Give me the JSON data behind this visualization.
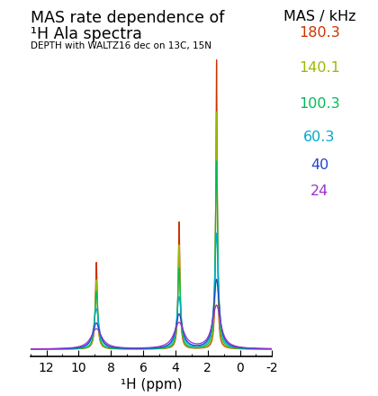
{
  "title_line1": "MAS rate dependence of",
  "title_line2": "¹H Ala spectra",
  "subtitle": "DEPTH with WALTZ16 dec on 13C, 15N",
  "legend_title": "MAS / kHz",
  "xlabel": "¹H (ppm)",
  "xlim": [
    13,
    -2
  ],
  "series": [
    {
      "label": "180.3",
      "color": "#CC3300"
    },
    {
      "label": "140.1",
      "color": "#99BB00"
    },
    {
      "label": "100.3",
      "color": "#00BB55"
    },
    {
      "label": "60.3",
      "color": "#00AACC"
    },
    {
      "label": "40",
      "color": "#2244CC"
    },
    {
      "label": "24",
      "color": "#9933CC"
    }
  ],
  "peaks": [
    {
      "ppm": 8.9,
      "heights": [
        0.3,
        0.24,
        0.2,
        0.14,
        0.09,
        0.07
      ],
      "widths": [
        0.15,
        0.18,
        0.23,
        0.38,
        0.55,
        0.8
      ]
    },
    {
      "ppm": 3.77,
      "heights": [
        0.44,
        0.36,
        0.28,
        0.18,
        0.12,
        0.09
      ],
      "widths": [
        0.13,
        0.16,
        0.21,
        0.34,
        0.5,
        0.75
      ]
    },
    {
      "ppm": 1.45,
      "heights": [
        1.0,
        0.82,
        0.65,
        0.4,
        0.24,
        0.15
      ],
      "widths": [
        0.1,
        0.13,
        0.18,
        0.28,
        0.42,
        0.62
      ]
    }
  ],
  "title_fontsize": 12.5,
  "subtitle_fontsize": 7.5,
  "legend_fontsize": 11.5,
  "legend_title_fontsize": 11.5,
  "xlabel_fontsize": 11,
  "tick_fontsize": 10
}
